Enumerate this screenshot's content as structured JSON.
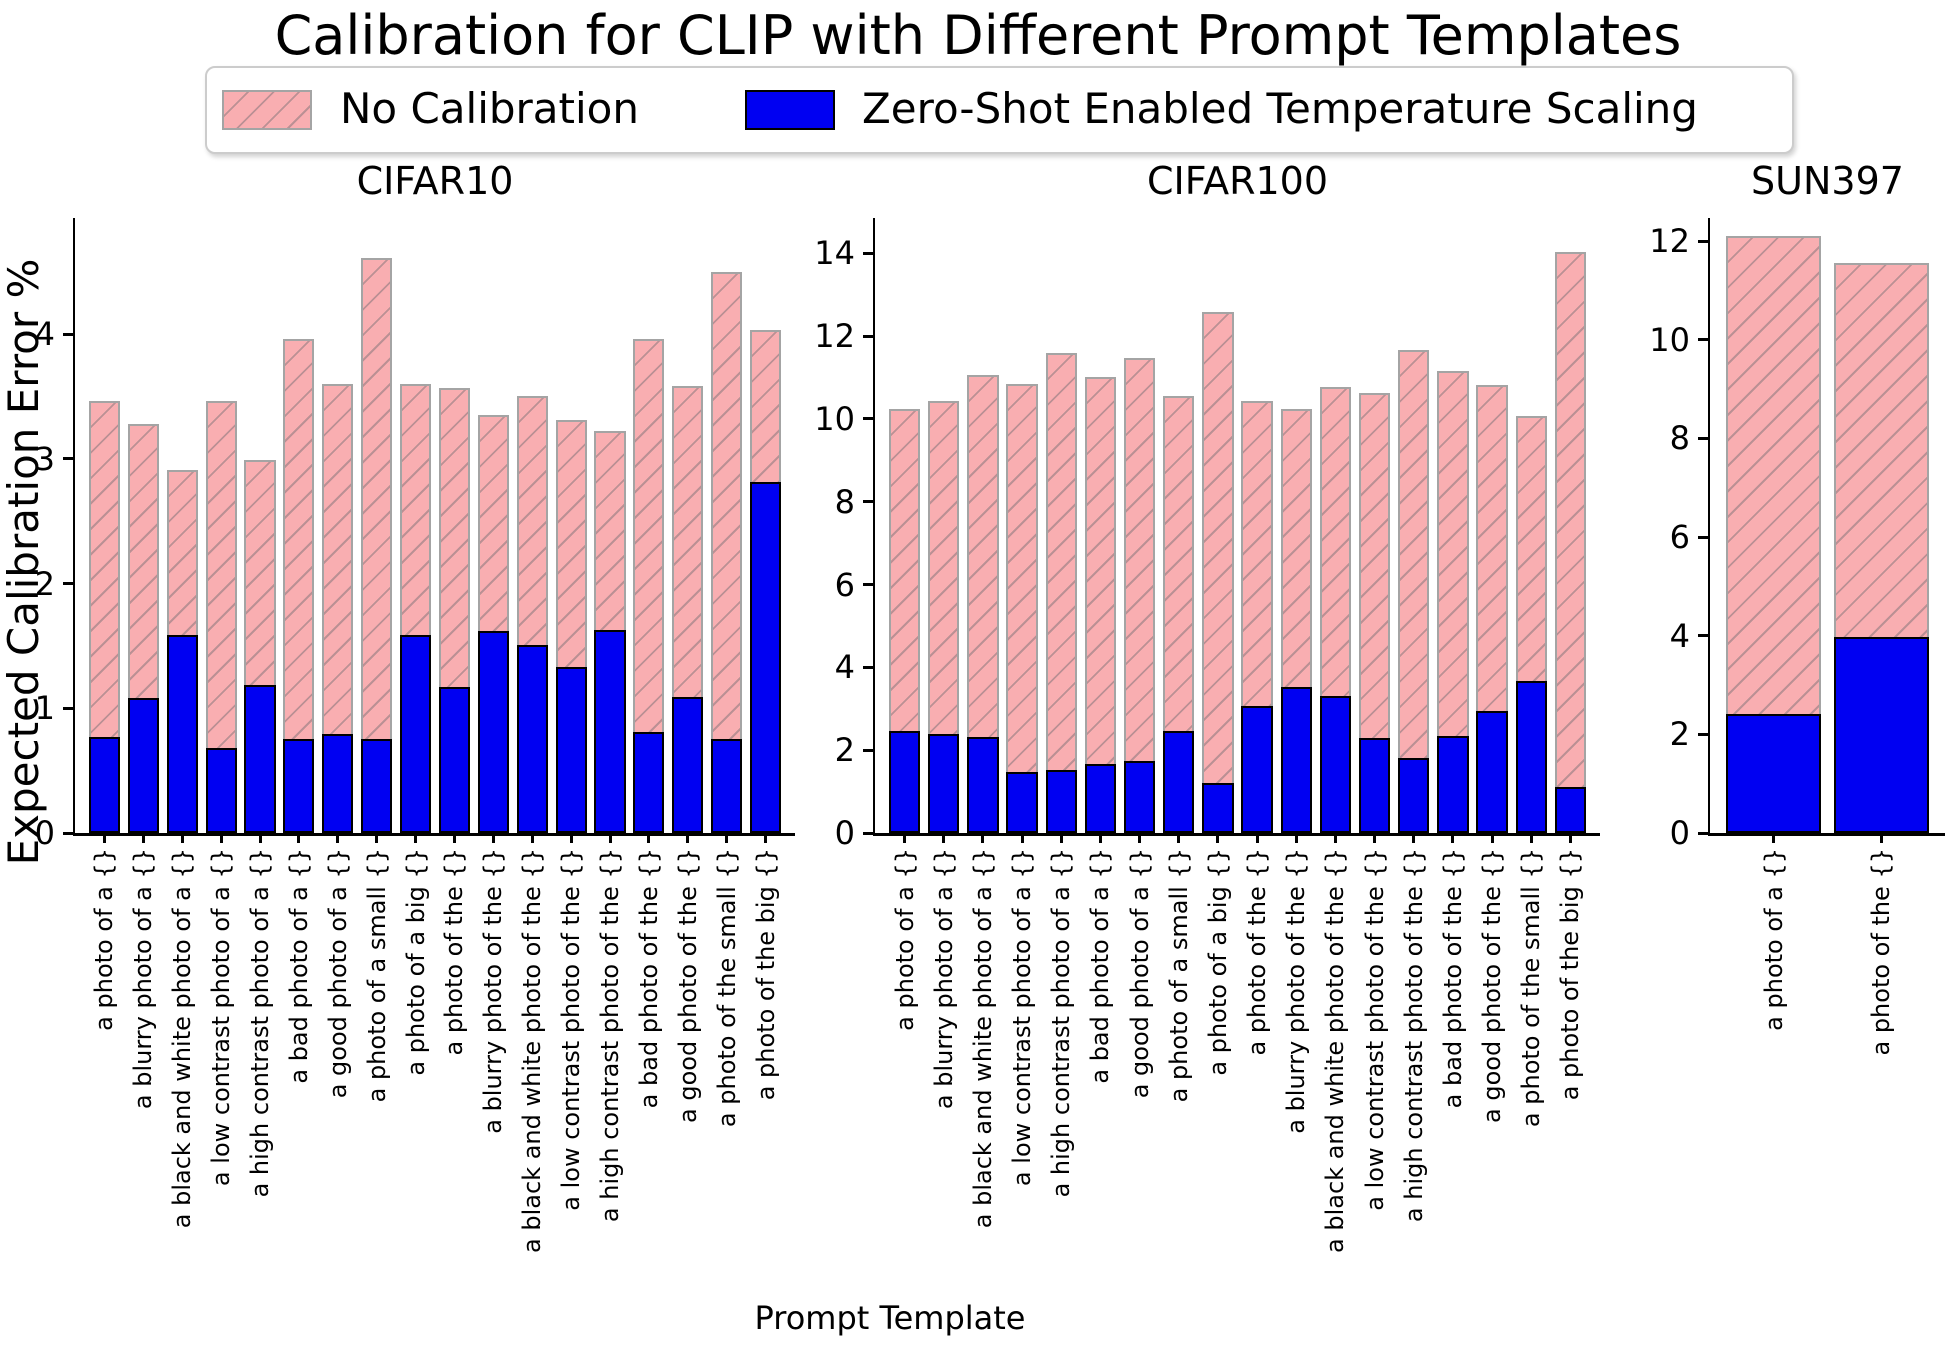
{
  "title": "Calibration for CLIP with Different Prompt Templates",
  "legend": {
    "no_calibration": "No Calibration",
    "zero_shot": "Zero-Shot Enabled Temperature Scaling"
  },
  "ylabel": "Expected Calibration Error %",
  "xlabel": "Prompt Template",
  "colors": {
    "no_calibration_fill": "#f9aeb1",
    "hatch_line": "#bb9094",
    "no_calibration_edge": "#a4a4a4",
    "zero_shot_fill": "#0000f2",
    "zero_shot_edge": "#000000",
    "axis": "#000000"
  },
  "chart_data": [
    {
      "type": "bar",
      "title": "CIFAR10",
      "overlay": true,
      "hatch_direction": "\\",
      "categories": [
        "a photo of a {}",
        "a blurry photo of a {}",
        "a black and white photo of a {}",
        "a low contrast photo of a {}",
        "a high contrast photo of a {}",
        "a bad photo of a {}",
        "a good photo of a {}",
        "a photo of a small {}",
        "a photo of a big {}",
        "a photo of the {}",
        "a blurry photo of the {}",
        "a black and white photo of the {}",
        "a low contrast photo of the {}",
        "a high contrast photo of the {}",
        "a bad photo of the {}",
        "a good photo of the {}",
        "a photo of the small {}",
        "a photo of the big {}"
      ],
      "series": [
        {
          "name": "No Calibration",
          "values": [
            3.46,
            3.28,
            2.91,
            3.46,
            2.99,
            3.96,
            3.6,
            4.61,
            3.6,
            3.57,
            3.35,
            3.5,
            3.31,
            3.22,
            3.96,
            3.58,
            4.5,
            4.03
          ]
        },
        {
          "name": "Zero-Shot Enabled Temperature Scaling",
          "values": [
            0.77,
            1.08,
            1.59,
            0.68,
            1.19,
            0.75,
            0.79,
            0.75,
            1.59,
            1.17,
            1.62,
            1.51,
            1.33,
            1.63,
            0.81,
            1.09,
            0.75,
            2.81
          ]
        }
      ],
      "yticks": [
        0,
        1,
        2,
        3,
        4
      ],
      "ylim": [
        0,
        4.93
      ],
      "grid": false
    },
    {
      "type": "bar",
      "title": "CIFAR100",
      "overlay": true,
      "hatch_direction": "\\",
      "categories": [
        "a photo of a {}",
        "a blurry photo of a {}",
        "a black and white photo of a {}",
        "a low contrast photo of a {}",
        "a high contrast photo of a {}",
        "a bad photo of a {}",
        "a good photo of a {}",
        "a photo of a small {}",
        "a photo of a big {}",
        "a photo of the {}",
        "a blurry photo of the {}",
        "a black and white photo of the {}",
        "a low contrast photo of the {}",
        "a high contrast photo of the {}",
        "a bad photo of the {}",
        "a good photo of the {}",
        "a photo of the small {}",
        "a photo of the big {}"
      ],
      "series": [
        {
          "name": "No Calibration",
          "values": [
            10.23,
            10.44,
            11.05,
            10.85,
            11.6,
            11.0,
            11.46,
            10.54,
            12.58,
            10.44,
            10.23,
            10.77,
            10.62,
            11.66,
            11.16,
            10.81,
            10.06,
            14.02
          ]
        },
        {
          "name": "Zero-Shot Enabled Temperature Scaling",
          "values": [
            2.47,
            2.4,
            2.31,
            1.47,
            1.52,
            1.67,
            1.74,
            2.47,
            1.21,
            3.07,
            3.53,
            3.31,
            2.3,
            1.82,
            2.34,
            2.94,
            3.66,
            1.12
          ]
        }
      ],
      "yticks": [
        0,
        2,
        4,
        6,
        8,
        10,
        12,
        14
      ],
      "ylim": [
        0,
        14.85
      ],
      "grid": false
    },
    {
      "type": "bar",
      "title": "SUN397",
      "overlay": true,
      "hatch_direction": "\\",
      "categories": [
        "a photo of a {}",
        "a photo of the {}"
      ],
      "series": [
        {
          "name": "No Calibration",
          "values": [
            12.1,
            11.55
          ]
        },
        {
          "name": "Zero-Shot Enabled Temperature Scaling",
          "values": [
            2.41,
            3.97
          ]
        }
      ],
      "yticks": [
        0,
        2,
        4,
        6,
        8,
        10,
        12
      ],
      "ylim": [
        0,
        12.47
      ],
      "grid": false
    }
  ]
}
